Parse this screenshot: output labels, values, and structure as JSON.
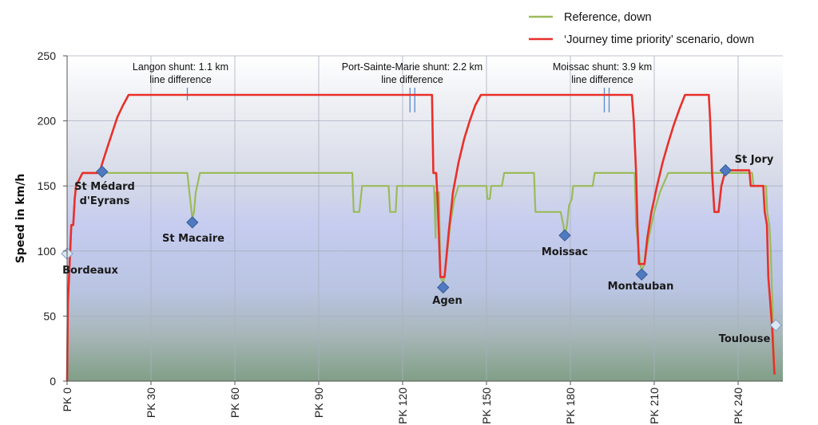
{
  "chart_data": {
    "type": "line",
    "title": "",
    "xlabel": "",
    "ylabel": "Speed in km/h",
    "xlim": [
      0,
      256
    ],
    "ylim": [
      0,
      250
    ],
    "grid": true,
    "x_tick_values": [
      0,
      30,
      60,
      90,
      120,
      150,
      180,
      210,
      240
    ],
    "x_tick_labels": [
      "PK 0",
      "PK 30",
      "PK 60",
      "PK 90",
      "PK 120",
      "PK 150",
      "PK 180",
      "PK 210",
      "PK 240"
    ],
    "y_ticks": [
      0,
      50,
      100,
      150,
      200,
      250
    ],
    "legend_position": "top-right",
    "series": [
      {
        "name": "Reference, down",
        "color": "#9bbb59",
        "points": [
          [
            0,
            0
          ],
          [
            0.3,
            60
          ],
          [
            1.5,
            120
          ],
          [
            2.2,
            120
          ],
          [
            2.7,
            140
          ],
          [
            3.2,
            150
          ],
          [
            5.5,
            160
          ],
          [
            43,
            160
          ],
          [
            44,
            140
          ],
          [
            44.8,
            125
          ],
          [
            45.4,
            130
          ],
          [
            46,
            145
          ],
          [
            47.5,
            160
          ],
          [
            102,
            160
          ],
          [
            102.5,
            130
          ],
          [
            104.5,
            130
          ],
          [
            105.5,
            150
          ],
          [
            115,
            150
          ],
          [
            115.5,
            130
          ],
          [
            117.5,
            130
          ],
          [
            118,
            150
          ],
          [
            131,
            150
          ],
          [
            131.2,
            150
          ],
          [
            131.3,
            145
          ],
          [
            131.8,
            110
          ],
          [
            131.9,
            145
          ],
          [
            133,
            145
          ],
          [
            133.5,
            80
          ],
          [
            134.5,
            75
          ],
          [
            135.5,
            90
          ],
          [
            137,
            120
          ],
          [
            138.5,
            140
          ],
          [
            140,
            150
          ],
          [
            150,
            150
          ],
          [
            150.3,
            140
          ],
          [
            151.2,
            140
          ],
          [
            151.7,
            150
          ],
          [
            155.5,
            150
          ],
          [
            156.3,
            160
          ],
          [
            167,
            160
          ],
          [
            167.5,
            130
          ],
          [
            176.5,
            130
          ],
          [
            177.5,
            120
          ],
          [
            178,
            110
          ],
          [
            178.8,
            120
          ],
          [
            179.5,
            135
          ],
          [
            180.5,
            140
          ],
          [
            181,
            150
          ],
          [
            188,
            150
          ],
          [
            188.7,
            160
          ],
          [
            203,
            160
          ],
          [
            203.5,
            120
          ],
          [
            204.5,
            100
          ],
          [
            205,
            90
          ],
          [
            205.5,
            85
          ],
          [
            206.5,
            90
          ],
          [
            208,
            110
          ],
          [
            210,
            130
          ],
          [
            212,
            145
          ],
          [
            215,
            160
          ],
          [
            245,
            160
          ],
          [
            245.5,
            150
          ],
          [
            250,
            150
          ],
          [
            250.4,
            130
          ],
          [
            251.2,
            120
          ],
          [
            251.7,
            100
          ],
          [
            252.5,
            40
          ],
          [
            253,
            5
          ]
        ]
      },
      {
        "name": "‘Journey time priority’ scenario, down",
        "color": "#e8302a",
        "points": [
          [
            0,
            0
          ],
          [
            0.3,
            60
          ],
          [
            1.5,
            120
          ],
          [
            2.2,
            120
          ],
          [
            2.7,
            140
          ],
          [
            3.2,
            150
          ],
          [
            5.5,
            160
          ],
          [
            11.5,
            160
          ],
          [
            12.5,
            167
          ],
          [
            14,
            177
          ],
          [
            16,
            190
          ],
          [
            18,
            203
          ],
          [
            20,
            212
          ],
          [
            21,
            216
          ],
          [
            22,
            220
          ],
          [
            130.5,
            220
          ],
          [
            131,
            160
          ],
          [
            132,
            160
          ],
          [
            132.5,
            140
          ],
          [
            133.5,
            80
          ],
          [
            135,
            80
          ],
          [
            136.5,
            115
          ],
          [
            138,
            145
          ],
          [
            140,
            168
          ],
          [
            142,
            186
          ],
          [
            144,
            200
          ],
          [
            146,
            212
          ],
          [
            148,
            220
          ],
          [
            202,
            220
          ],
          [
            202.7,
            200
          ],
          [
            203.5,
            160
          ],
          [
            204,
            120
          ],
          [
            204.5,
            90
          ],
          [
            206.5,
            90
          ],
          [
            207.5,
            110
          ],
          [
            209,
            130
          ],
          [
            211,
            150
          ],
          [
            213,
            168
          ],
          [
            215,
            183
          ],
          [
            217,
            197
          ],
          [
            219,
            209
          ],
          [
            221,
            220
          ],
          [
            229.5,
            220
          ],
          [
            230,
            200
          ],
          [
            230.7,
            160
          ],
          [
            231.5,
            130
          ],
          [
            233,
            130
          ],
          [
            234,
            150
          ],
          [
            235,
            158
          ],
          [
            235.5,
            162
          ],
          [
            244,
            162
          ],
          [
            244.5,
            150
          ],
          [
            249,
            150
          ],
          [
            249.5,
            130
          ],
          [
            250.3,
            120
          ],
          [
            250.8,
            80
          ],
          [
            251.5,
            60
          ],
          [
            252.2,
            40
          ],
          [
            253,
            5
          ]
        ]
      }
    ],
    "stations": [
      {
        "name": "Bordeaux",
        "x": 0,
        "y": 98,
        "marker": "light"
      },
      {
        "name": "St Médard",
        "name2": "d'Eyrans",
        "x": 12.5,
        "y": 161,
        "marker": "dark"
      },
      {
        "name": "St Macaire",
        "x": 44.8,
        "y": 122,
        "marker": "dark"
      },
      {
        "name": "Agen",
        "x": 134.5,
        "y": 72,
        "marker": "dark"
      },
      {
        "name": "Moissac",
        "x": 178,
        "y": 112,
        "marker": "dark"
      },
      {
        "name": "Montauban",
        "x": 205.5,
        "y": 82,
        "marker": "dark"
      },
      {
        "name": "St Jory",
        "x": 235.5,
        "y": 162,
        "marker": "dark"
      },
      {
        "name": "Toulouse",
        "x": 253.5,
        "y": 43,
        "marker": "light"
      }
    ],
    "annotations": [
      {
        "line1": "Langon shunt: 1.1 km",
        "line2": "line difference",
        "x": 43
      },
      {
        "line1": "Port-Sainte-Marie shunt: 2.2 km",
        "line2": "line difference",
        "x": 124
      },
      {
        "line1": "Moissac shunt: 3.9 km",
        "line2": "line difference",
        "x": 192
      }
    ],
    "shunts": [
      {
        "x": 43,
        "marks": 1
      },
      {
        "x": 123.5,
        "marks": 2
      },
      {
        "x": 193,
        "marks": 2
      }
    ]
  }
}
